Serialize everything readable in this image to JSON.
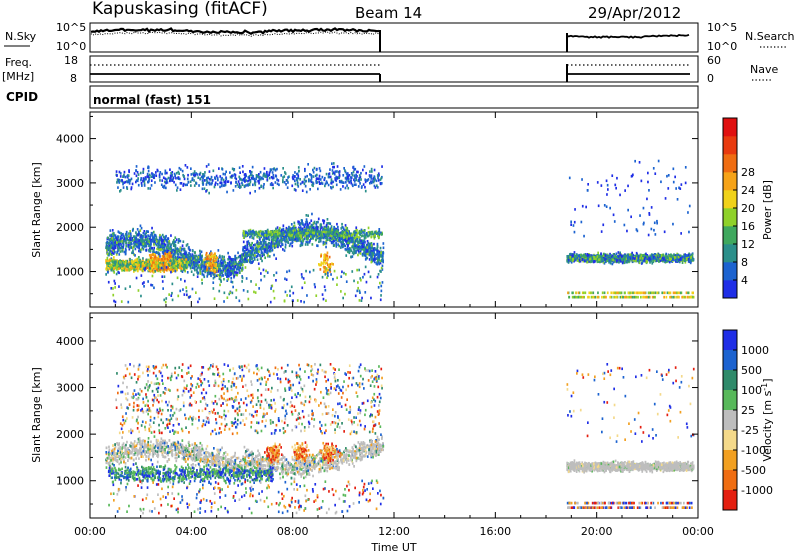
{
  "header": {
    "title": "Kapuskasing (fitACF)",
    "beam": "Beam 14",
    "date": "29/Apr/2012"
  },
  "sidebar": {
    "nsky_label": "N.Sky",
    "nsky_ticks": [
      "10^5",
      "10^0"
    ],
    "nsearch_label": "N.Search",
    "nsearch_ticks": [
      "10^5",
      "10^0"
    ],
    "freq_label": "Freq.",
    "freq_unit": "[MHz]",
    "freq_ticks": [
      "18",
      "8"
    ],
    "nave_label": "Nave",
    "nave_ticks": [
      "60",
      "0"
    ],
    "cpid_label": "CPID",
    "cpid_text": "normal (fast) 151"
  },
  "chart_data": [
    {
      "type": "heatmap",
      "name": "power-panel",
      "ylabel": "Slant Range [km]",
      "xlabel": "",
      "ylim": [
        200,
        4600
      ],
      "xlim": [
        0,
        24
      ],
      "yticks": [
        "1000",
        "2000",
        "3000",
        "4000"
      ],
      "xticks": [
        "00:00",
        "04:00",
        "08:00",
        "12:00",
        "16:00",
        "20:00",
        "00:00"
      ],
      "colorbar": {
        "label": "Power [dB]",
        "ticks": [
          "4",
          "8",
          "12",
          "16",
          "20",
          "24",
          "28"
        ],
        "colors": [
          "#1f2ee6",
          "#1c63d0",
          "#2b8f8a",
          "#3fa85e",
          "#8fd12a",
          "#f0d21a",
          "#f6a318",
          "#ef6d12",
          "#e83a0f",
          "#e01010"
        ]
      },
      "data_gap_hours": [
        11.55,
        18.8
      ],
      "bands": [
        {
          "from_h": 0.6,
          "to_h": 11.55,
          "range_km": 1500,
          "power_db": 8
        },
        {
          "from_h": 0.6,
          "to_h": 3.5,
          "range_km": 1200,
          "power_db": 14
        },
        {
          "from_h": 18.8,
          "to_h": 23.8,
          "range_km": 1300,
          "power_db": 10
        }
      ]
    },
    {
      "type": "heatmap",
      "name": "velocity-panel",
      "ylabel": "Slant Range [km]",
      "xlabel": "Time UT",
      "ylim": [
        200,
        4600
      ],
      "xlim": [
        0,
        24
      ],
      "yticks": [
        "1000",
        "2000",
        "3000",
        "4000"
      ],
      "xticks": [
        "00:00",
        "04:00",
        "08:00",
        "12:00",
        "16:00",
        "20:00",
        "00:00"
      ],
      "colorbar": {
        "label": "Velocity [m s",
        "label_sup": "-1",
        "label_close": "]",
        "ticks": [
          "1000",
          "500",
          "100",
          "25",
          "-25",
          "-100",
          "-500",
          "-1000"
        ],
        "colors": [
          "#1f2ee6",
          "#1c63d0",
          "#2f8a6a",
          "#58b85a",
          "#bdbdbd",
          "#f4d98a",
          "#f2a021",
          "#ef6d12",
          "#e41f10"
        ]
      },
      "data_gap_hours": [
        11.55,
        18.8
      ],
      "bands": [
        {
          "from_h": 0.6,
          "to_h": 11.55,
          "range_km": 1700,
          "velocity": 0
        },
        {
          "from_h": 18.8,
          "to_h": 23.8,
          "range_km": 1300,
          "velocity": 0
        }
      ]
    }
  ]
}
